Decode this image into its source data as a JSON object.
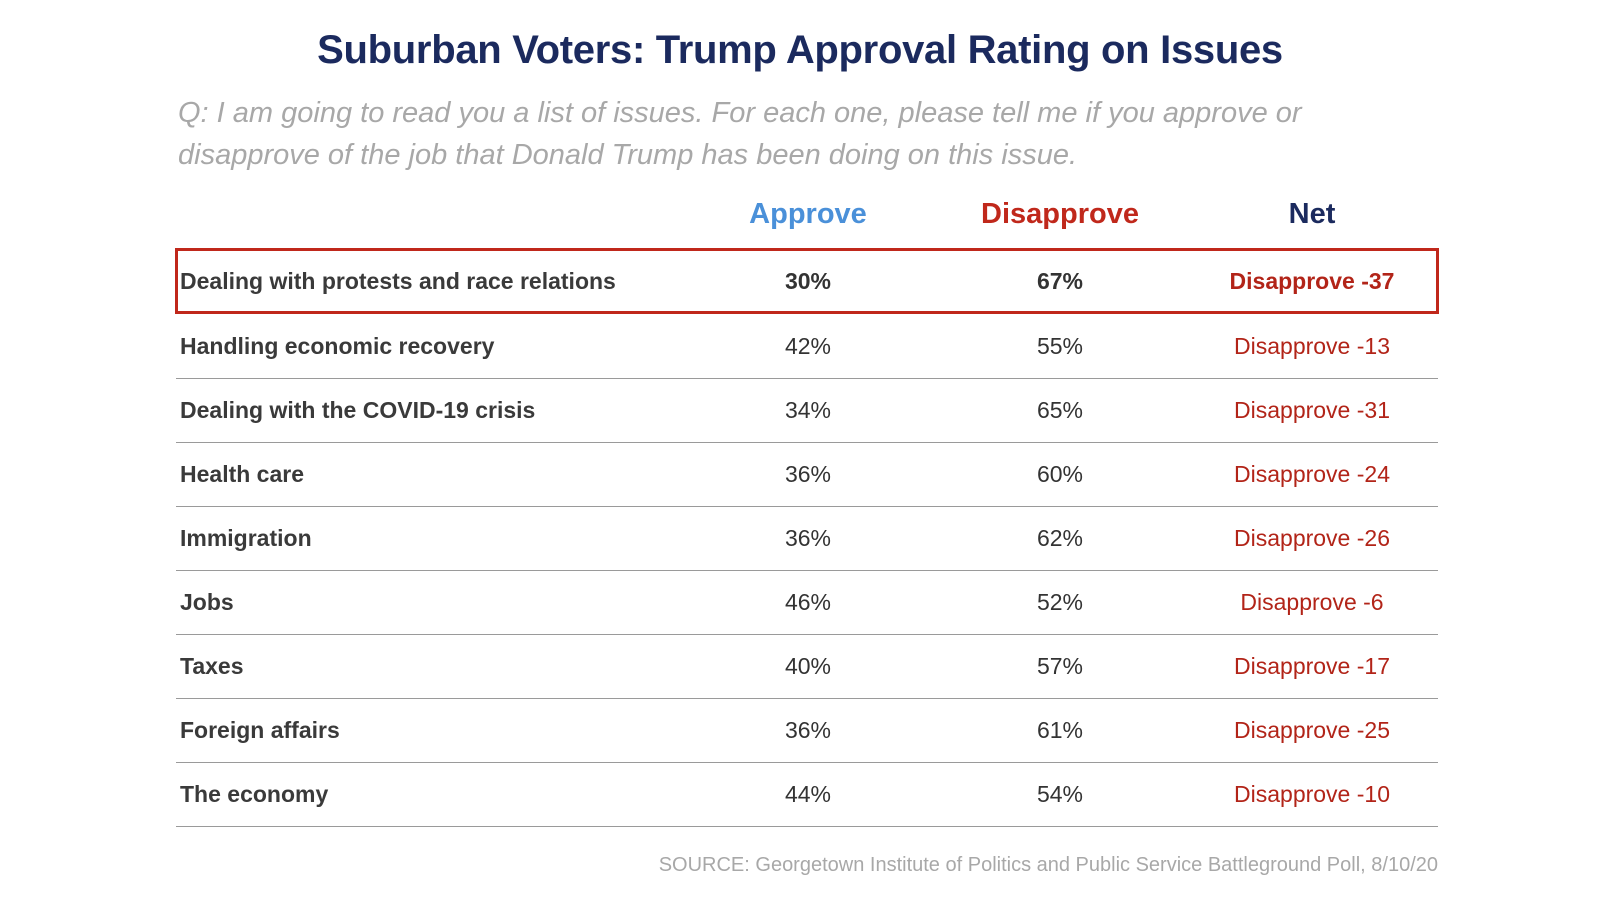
{
  "title": "Suburban Voters: Trump Approval Rating on Issues",
  "question": "Q: I am going to read you a list of issues. For each one, please tell me if you approve or disapprove of the job that Donald Trump has been doing on this issue.",
  "headers": {
    "approve": "Approve",
    "disapprove": "Disapprove",
    "net": "Net"
  },
  "colors": {
    "title": "#1b2a5e",
    "approve": "#4a90d9",
    "disapprove": "#c0281b",
    "net_header": "#1b2a5e",
    "highlight_border": "#c0281b"
  },
  "chart_data": {
    "type": "table",
    "title": "Suburban Voters: Trump Approval Rating on Issues",
    "columns": [
      "",
      "Approve",
      "Disapprove",
      "Net"
    ],
    "highlighted_row": 0,
    "rows": [
      {
        "issue": "Dealing with protests and race relations",
        "approve": "30%",
        "disapprove": "67%",
        "net": "Disapprove -37"
      },
      {
        "issue": "Handling economic recovery",
        "approve": "42%",
        "disapprove": "55%",
        "net": "Disapprove -13"
      },
      {
        "issue": "Dealing with the COVID-19 crisis",
        "approve": "34%",
        "disapprove": "65%",
        "net": "Disapprove -31"
      },
      {
        "issue": "Health care",
        "approve": "36%",
        "disapprove": "60%",
        "net": "Disapprove -24"
      },
      {
        "issue": "Immigration",
        "approve": "36%",
        "disapprove": "62%",
        "net": "Disapprove -26"
      },
      {
        "issue": "Jobs",
        "approve": "46%",
        "disapprove": "52%",
        "net": "Disapprove -6"
      },
      {
        "issue": "Taxes",
        "approve": "40%",
        "disapprove": "57%",
        "net": "Disapprove -17"
      },
      {
        "issue": "Foreign affairs",
        "approve": "36%",
        "disapprove": "61%",
        "net": "Disapprove -25"
      },
      {
        "issue": "The economy",
        "approve": "44%",
        "disapprove": "54%",
        "net": "Disapprove -10"
      }
    ]
  },
  "source": "SOURCE: Georgetown Institute of Politics and Public Service Battleground Poll, 8/10/20"
}
